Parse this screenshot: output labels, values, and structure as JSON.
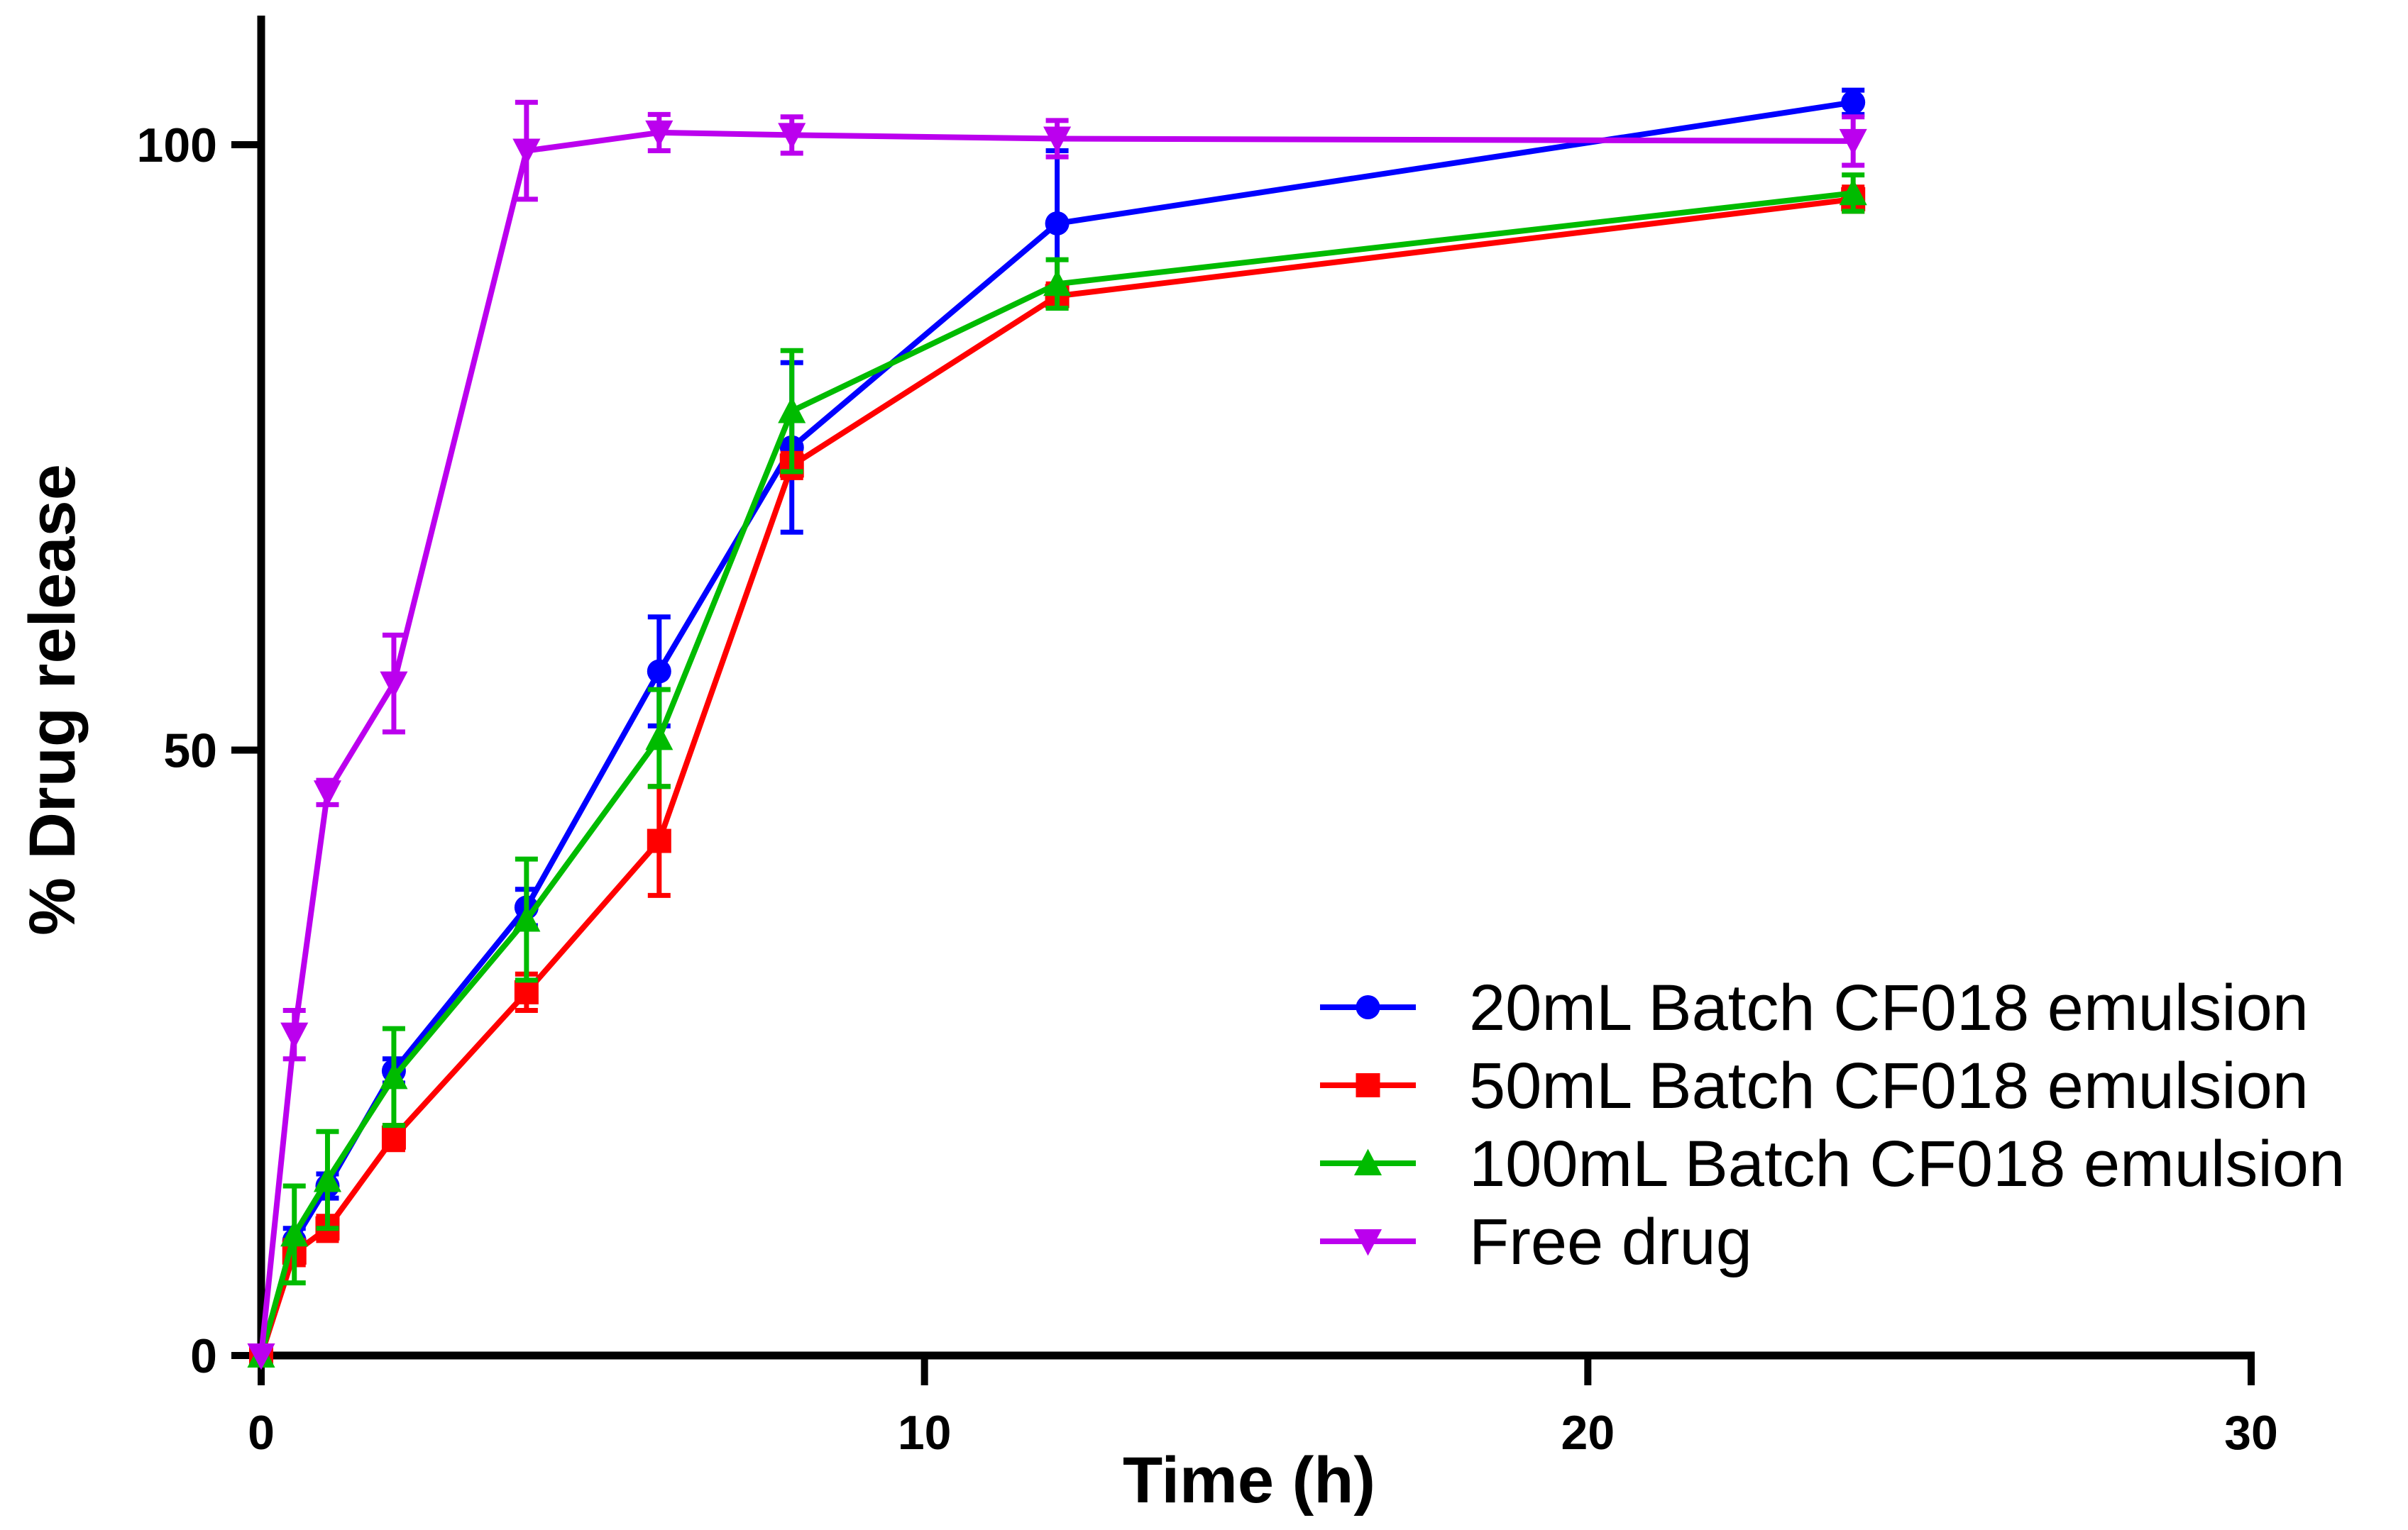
{
  "chart_data": {
    "type": "line",
    "title": "",
    "xlabel": "Time (h)",
    "ylabel": "% Drug release",
    "xlim": [
      0,
      30
    ],
    "ylim": [
      0,
      110
    ],
    "xticks": [
      0,
      10,
      20,
      30
    ],
    "yticks": [
      0,
      50,
      100
    ],
    "grid": false,
    "legend_position": "bottom-right",
    "x": [
      0,
      0.5,
      1,
      2,
      4,
      6,
      8,
      12,
      24
    ],
    "series": [
      {
        "name": "20mL Batch CF018 emulsion",
        "color": "#0000ff",
        "marker": "circle",
        "values": [
          0,
          9.5,
          14,
          23.5,
          37,
          56.5,
          75,
          93.5,
          103.5
        ],
        "errors": [
          0,
          1,
          1,
          1,
          1.5,
          4.5,
          7,
          6,
          1
        ]
      },
      {
        "name": "50mL Batch CF018 emulsion",
        "color": "#ff0000",
        "marker": "square",
        "values": [
          0,
          8.5,
          10.5,
          18,
          30,
          42.5,
          73.5,
          87.5,
          95.5
        ],
        "errors": [
          0,
          1,
          1,
          1,
          1.5,
          4.5,
          1,
          1,
          1
        ]
      },
      {
        "name": "100mL Batch CF018 emulsion",
        "color": "#00bb00",
        "marker": "triangle-up",
        "values": [
          0,
          10,
          14.5,
          23,
          36,
          51,
          78,
          88.5,
          96
        ],
        "errors": [
          0,
          4,
          4,
          4,
          5,
          4,
          5,
          2,
          1.5
        ]
      },
      {
        "name": "Free drug",
        "color": "#bb00ee",
        "marker": "triangle-down",
        "values": [
          0,
          26.5,
          46.5,
          55.5,
          99.5,
          101,
          100.8,
          100.5,
          100.3
        ],
        "errors": [
          0,
          2,
          1,
          4,
          4,
          1.5,
          1.5,
          1.5,
          2
        ]
      }
    ]
  }
}
